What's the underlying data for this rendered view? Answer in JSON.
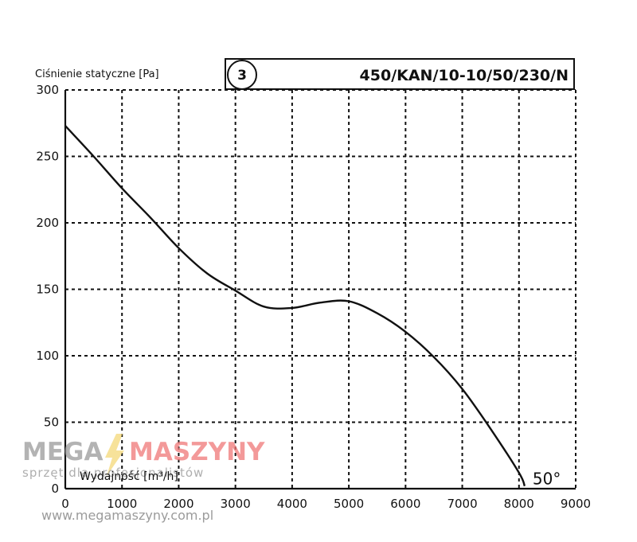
{
  "chart_data": {
    "type": "line",
    "title": "450/KAN/10-10/50/230/N",
    "badge": "3",
    "ylabel": "Ciśnienie statyczne [Pa]",
    "xlabel": "Wydajność [m³/h]",
    "xlim": [
      0,
      9000
    ],
    "ylim": [
      0,
      300
    ],
    "x_ticks": [
      "0",
      "1000",
      "2000",
      "3000",
      "4000",
      "5000",
      "6000",
      "7000",
      "8000",
      "9000"
    ],
    "y_ticks": [
      "0",
      "50",
      "100",
      "150",
      "200",
      "250",
      "300"
    ],
    "grid": true,
    "series": [
      {
        "name": "50°",
        "x": [
          0,
          500,
          1000,
          1500,
          2000,
          2500,
          3000,
          3500,
          4000,
          4500,
          5000,
          5500,
          6000,
          6500,
          7000,
          7500,
          8000,
          8100
        ],
        "y": [
          273,
          250,
          226,
          204,
          181,
          162,
          149,
          137,
          136,
          140,
          141,
          132,
          118,
          99,
          75,
          45,
          12,
          2
        ]
      }
    ]
  },
  "watermark": {
    "brand_left": "MEGA",
    "brand_right": "MASZYNY",
    "tagline": "sprzęt dla profesjonalistów",
    "url": "www.megamaszyny.com.pl",
    "color_gray": "#9a9a9a",
    "color_red": "#f07878"
  }
}
